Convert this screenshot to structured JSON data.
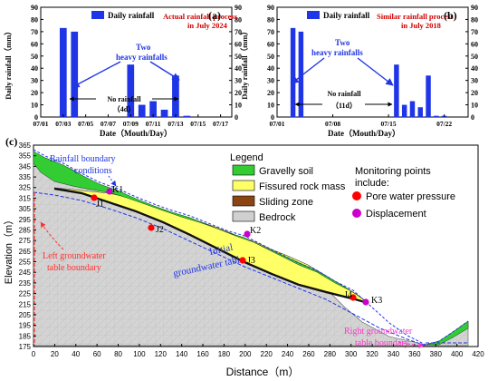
{
  "panel_a": {
    "letter": "(a)",
    "legend": "Daily rainfall",
    "title_line1": "Actual rainfall process",
    "title_line2": "in July 2024",
    "ylabel": "Daily rainfall（mm）",
    "xlabel": "Date（Mouth/Day）",
    "annotation_two_line1": "Two",
    "annotation_two_line2": "heavy rainfalls",
    "annotation_no_line1": "No rainfall",
    "annotation_no_line2": "（4d）",
    "y_ticks": [
      "0",
      "10",
      "20",
      "30",
      "40",
      "50",
      "60",
      "70",
      "80",
      "90"
    ],
    "x_ticks": [
      "07/01",
      "07/03",
      "07/05",
      "07/07",
      "07/09",
      "07/11",
      "07/13",
      "07/15",
      "07/17"
    ],
    "accent_color": "#d00000",
    "bar_color": "#1f35e6"
  },
  "panel_b": {
    "letter": "(b)",
    "legend": "Daily rainfall",
    "title_line1": "Similar rainfall process",
    "title_line2": "in July 2018",
    "ylabel": "Daily rainfall（mm）",
    "xlabel": "Date（Mouth/Day）",
    "annotation_two_line1": "Two",
    "annotation_two_line2": "heavy rainfalls",
    "annotation_no_line1": "No rainfall",
    "annotation_no_line2": "（11d）",
    "y_ticks": [
      "0",
      "10",
      "20",
      "30",
      "40",
      "50",
      "60",
      "70",
      "80",
      "90"
    ],
    "x_ticks": [
      "07/01",
      "07/08",
      "07/15",
      "07/22"
    ]
  },
  "panel_c": {
    "letter": "(c)",
    "rain_boundary_line1": "Rainfall boundary",
    "rain_boundary_line2": "conditions",
    "left_gw_line1": "Left groundwater",
    "left_gw_line2": "table boundary",
    "right_gw_line1": "Right groundwater",
    "right_gw_line2": "table boundary",
    "initial_gw_line1": "Initial",
    "initial_gw_line2": "groundwater table",
    "ylabel": "Elevation（m）",
    "xlabel": "Distance（m）",
    "legend_title": "Legend",
    "legend_gravelly": "Gravelly soil",
    "legend_fissured": "Fissured rock mass",
    "legend_sliding": "Sliding zone",
    "legend_bedrock": "Bedrock",
    "monitor_line1": "Monitoring points",
    "monitor_line2": "include:",
    "monitor_pore": "Pore water pressure",
    "monitor_disp": "Displacement",
    "points": [
      "K1",
      "K2",
      "K3",
      "J1",
      "J2",
      "J3",
      "J4"
    ],
    "x_ticks": [
      "0",
      "20",
      "40",
      "60",
      "80",
      "100",
      "120",
      "140",
      "160",
      "180",
      "200",
      "220",
      "240",
      "260",
      "280",
      "300",
      "320",
      "340",
      "360",
      "380",
      "400",
      "420"
    ],
    "y_ticks": [
      "175",
      "185",
      "195",
      "205",
      "215",
      "225",
      "235",
      "245",
      "255",
      "265",
      "275",
      "285",
      "295",
      "305",
      "315",
      "325",
      "335",
      "345",
      "355",
      "365"
    ],
    "colors": {
      "gravelly": "#33cc33",
      "fissured": "#ffff66",
      "sliding": "#8b4513",
      "bedrock": "#d0d0d0",
      "pore": "#ff0000",
      "disp": "#cc00cc"
    }
  },
  "chart_data": [
    {
      "type": "bar",
      "title": "Actual rainfall process in July 2024",
      "xlabel": "Date（Mouth/Day）",
      "ylabel": "Daily rainfall（mm）",
      "ylim": [
        0,
        90
      ],
      "x": [
        3,
        4,
        9,
        10,
        11,
        12,
        13,
        14
      ],
      "values": [
        73,
        70,
        43,
        10,
        13,
        6,
        34,
        1
      ],
      "series": [
        {
          "name": "Daily rainfall",
          "values": [
            73,
            70,
            43,
            10,
            13,
            6,
            34,
            1
          ]
        }
      ]
    },
    {
      "type": "bar",
      "title": "Similar rainfall process in July 2018",
      "xlabel": "Date（Mouth/Day）",
      "ylabel": "Daily rainfall（mm）",
      "ylim": [
        0,
        90
      ],
      "x": [
        3,
        4,
        16,
        17,
        18,
        19,
        20,
        21,
        22
      ],
      "values": [
        73,
        70,
        43,
        10,
        13,
        8,
        34,
        1,
        1
      ],
      "series": [
        {
          "name": "Daily rainfall",
          "values": [
            73,
            70,
            43,
            10,
            13,
            8,
            34,
            1,
            1
          ]
        }
      ]
    }
  ]
}
